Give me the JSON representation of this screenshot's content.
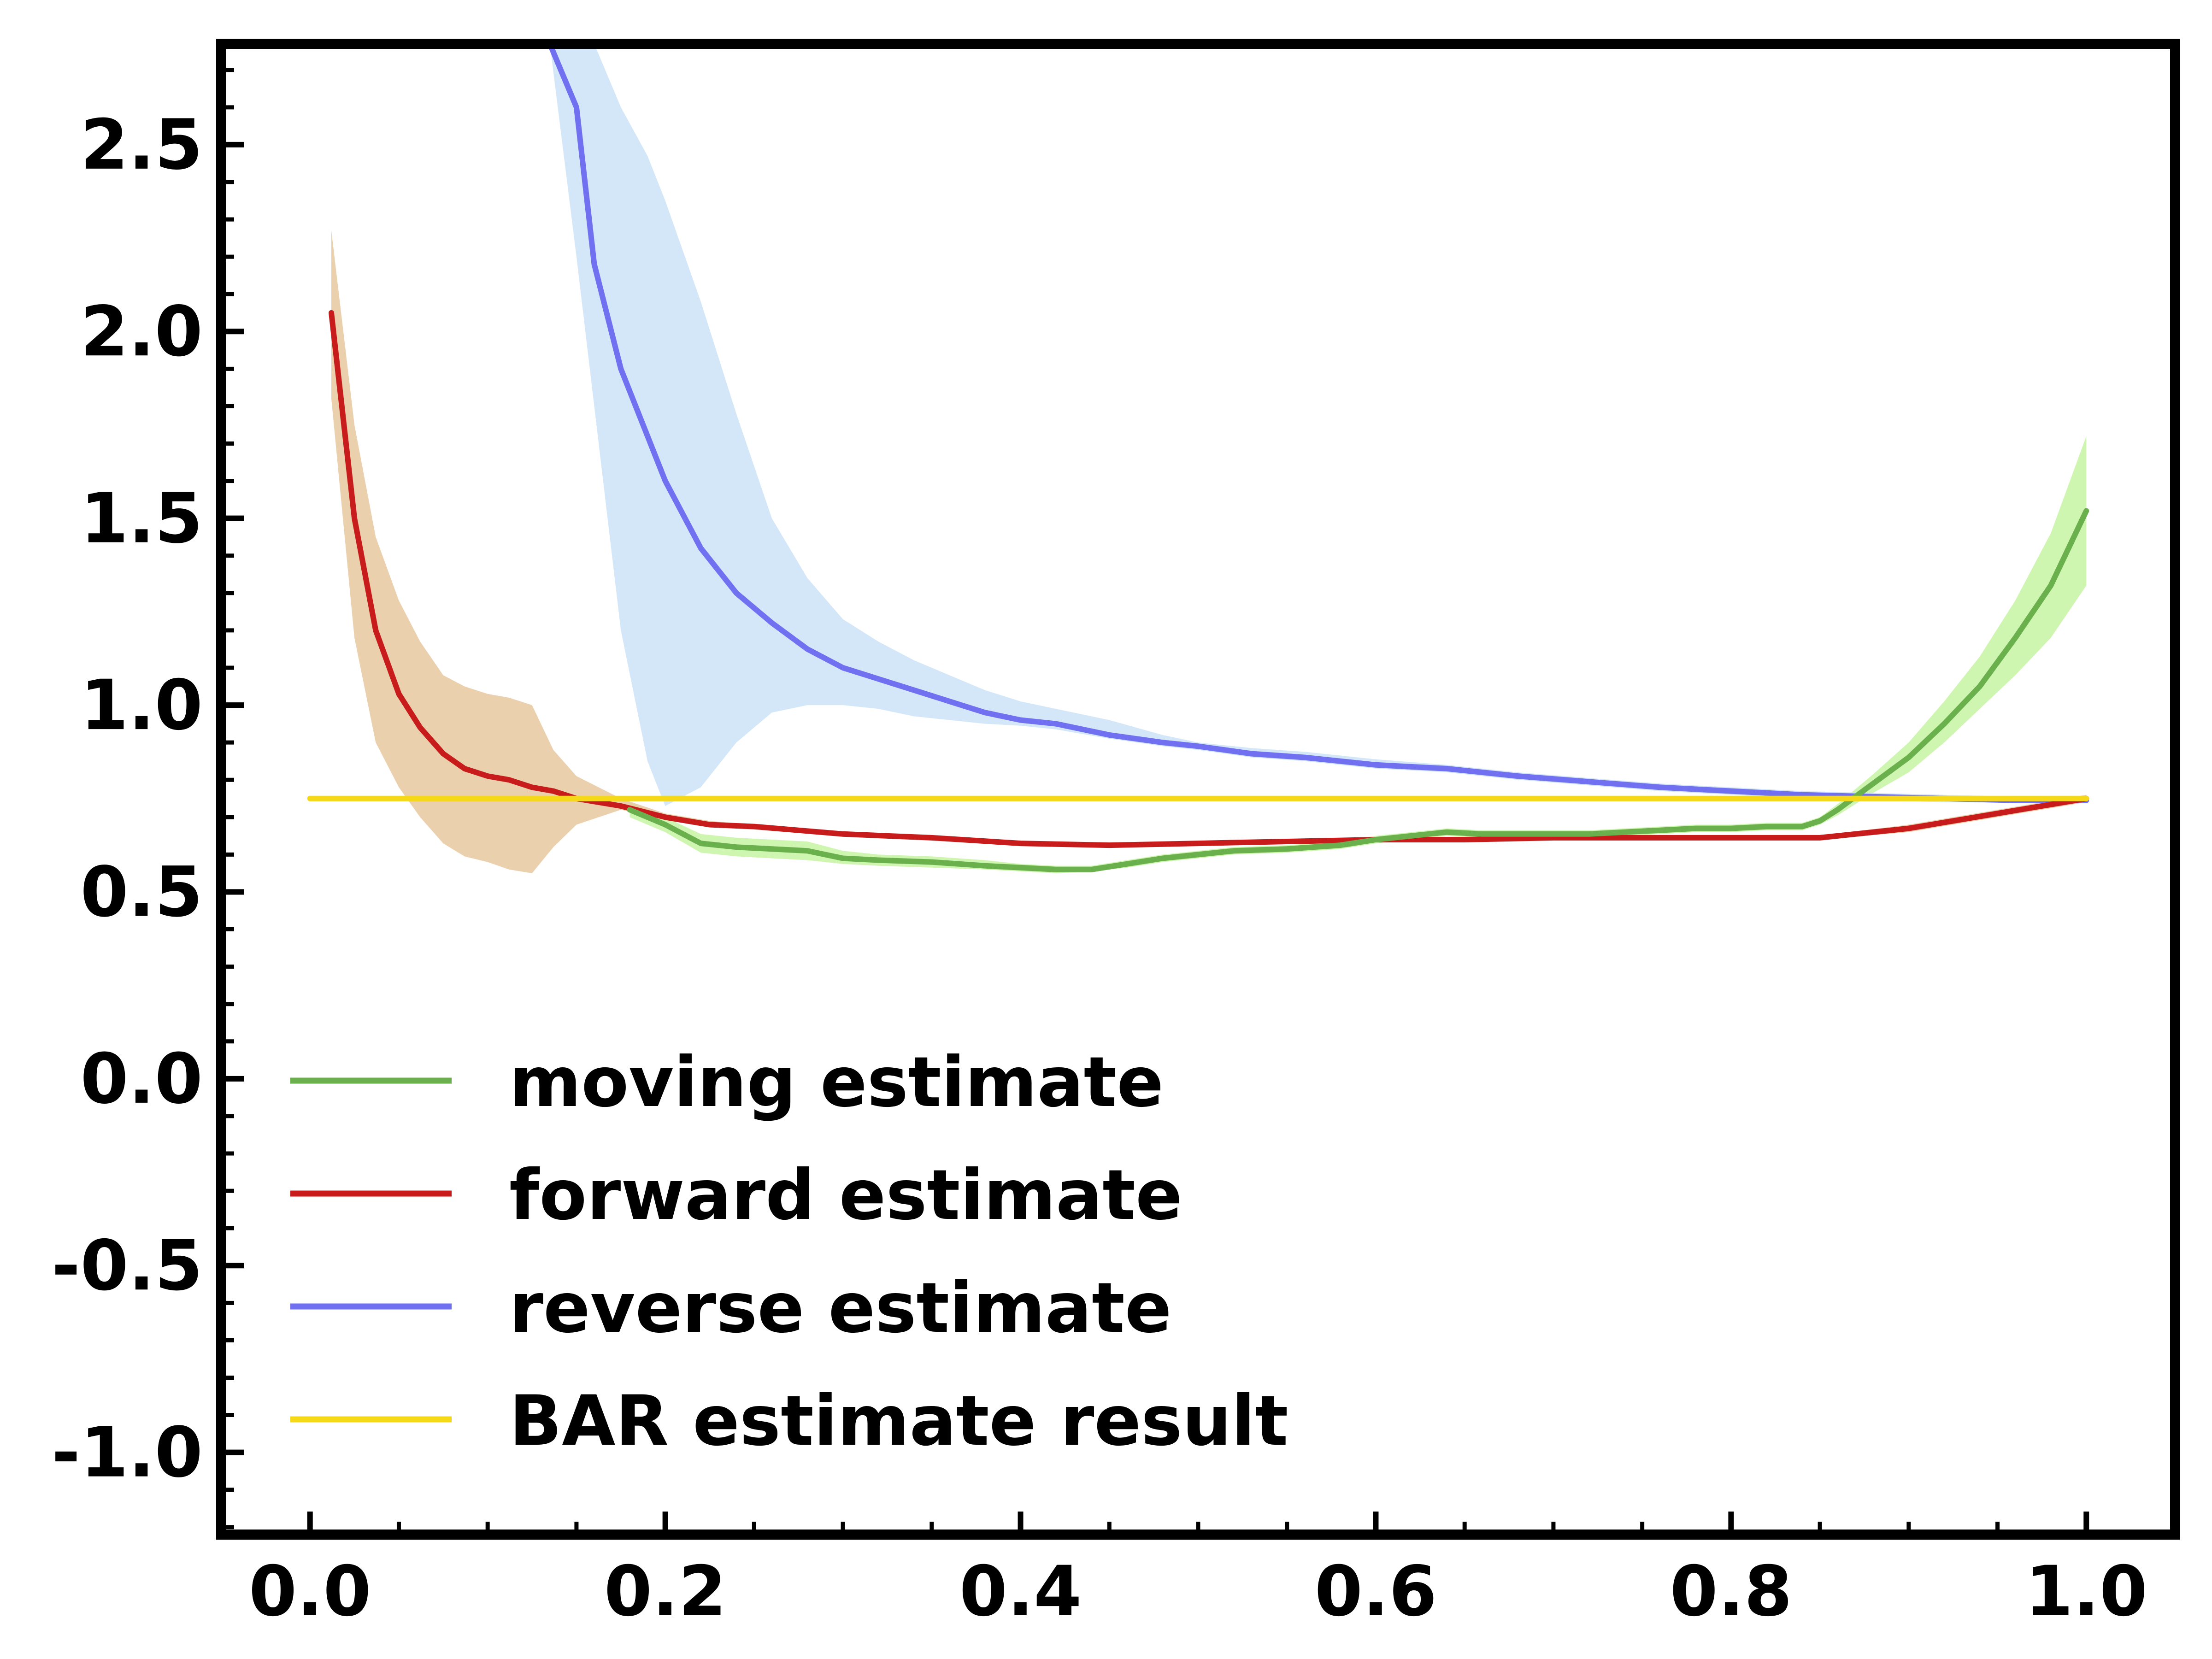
{
  "chart_data": {
    "type": "line",
    "xlim": [
      -0.05,
      1.05
    ],
    "ylim": [
      -1.22,
      2.77
    ],
    "x_ticks": [
      "0.0",
      "0.2",
      "0.4",
      "0.6",
      "0.8",
      "1.0"
    ],
    "y_ticks": [
      "-1.0",
      "-0.5",
      "0.0",
      "0.5",
      "1.0",
      "1.5",
      "2.0",
      "2.5"
    ],
    "grid": false,
    "legend_position": "lower-left",
    "series": [
      {
        "name": "moving estimate",
        "color": "#6ab04c",
        "band_color": "#c7f5a2",
        "x": [
          0.18,
          0.2,
          0.22,
          0.24,
          0.26,
          0.28,
          0.3,
          0.32,
          0.35,
          0.38,
          0.4,
          0.42,
          0.44,
          0.46,
          0.48,
          0.5,
          0.52,
          0.55,
          0.58,
          0.6,
          0.62,
          0.64,
          0.66,
          0.68,
          0.7,
          0.72,
          0.74,
          0.76,
          0.78,
          0.8,
          0.82,
          0.84,
          0.85,
          0.86,
          0.88,
          0.9,
          0.92,
          0.94,
          0.96,
          0.98,
          1.0
        ],
        "y": [
          0.72,
          0.68,
          0.63,
          0.62,
          0.615,
          0.61,
          0.59,
          0.585,
          0.58,
          0.57,
          0.565,
          0.56,
          0.56,
          0.575,
          0.59,
          0.6,
          0.61,
          0.615,
          0.625,
          0.64,
          0.65,
          0.66,
          0.655,
          0.655,
          0.655,
          0.655,
          0.66,
          0.665,
          0.67,
          0.67,
          0.675,
          0.675,
          0.69,
          0.72,
          0.79,
          0.86,
          0.95,
          1.05,
          1.18,
          1.32,
          1.52
        ],
        "lower": [
          0.7,
          0.66,
          0.605,
          0.595,
          0.59,
          0.585,
          0.575,
          0.57,
          0.565,
          0.56,
          0.555,
          0.55,
          0.555,
          0.565,
          0.58,
          0.59,
          0.6,
          0.605,
          0.615,
          0.63,
          0.64,
          0.65,
          0.645,
          0.645,
          0.645,
          0.645,
          0.65,
          0.655,
          0.66,
          0.66,
          0.665,
          0.665,
          0.68,
          0.705,
          0.765,
          0.82,
          0.9,
          0.99,
          1.08,
          1.18,
          1.32
        ],
        "upper": [
          0.74,
          0.7,
          0.655,
          0.645,
          0.64,
          0.635,
          0.61,
          0.6,
          0.595,
          0.585,
          0.575,
          0.57,
          0.57,
          0.585,
          0.6,
          0.61,
          0.62,
          0.625,
          0.635,
          0.65,
          0.66,
          0.67,
          0.665,
          0.665,
          0.665,
          0.665,
          0.67,
          0.675,
          0.68,
          0.68,
          0.685,
          0.685,
          0.7,
          0.735,
          0.815,
          0.9,
          1.01,
          1.13,
          1.28,
          1.46,
          1.72
        ]
      },
      {
        "name": "forward estimate",
        "color": "#c81c1c",
        "band_color": "#e8c8a0",
        "x": [
          0.012,
          0.025,
          0.037,
          0.05,
          0.062,
          0.075,
          0.087,
          0.1,
          0.112,
          0.125,
          0.137,
          0.15,
          0.175,
          0.2,
          0.225,
          0.25,
          0.275,
          0.3,
          0.35,
          0.4,
          0.45,
          0.5,
          0.55,
          0.6,
          0.65,
          0.7,
          0.75,
          0.8,
          0.85,
          0.9,
          0.95,
          1.0
        ],
        "y": [
          2.05,
          1.5,
          1.2,
          1.03,
          0.94,
          0.87,
          0.83,
          0.81,
          0.8,
          0.78,
          0.77,
          0.75,
          0.73,
          0.7,
          0.68,
          0.675,
          0.665,
          0.655,
          0.645,
          0.63,
          0.625,
          0.63,
          0.635,
          0.64,
          0.64,
          0.645,
          0.645,
          0.645,
          0.645,
          0.67,
          0.71,
          0.75
        ],
        "lower": [
          1.82,
          1.18,
          0.9,
          0.78,
          0.7,
          0.63,
          0.595,
          0.58,
          0.56,
          0.55,
          0.62,
          0.68,
          0.72,
          0.695,
          0.675,
          0.67,
          0.66,
          0.65,
          0.64,
          0.625,
          0.62,
          0.625,
          0.63,
          0.635,
          0.635,
          0.64,
          0.64,
          0.64,
          0.64,
          0.66,
          0.7,
          0.74
        ],
        "upper": [
          2.27,
          1.75,
          1.45,
          1.28,
          1.17,
          1.08,
          1.05,
          1.03,
          1.02,
          1.0,
          0.88,
          0.81,
          0.75,
          0.71,
          0.69,
          0.68,
          0.67,
          0.66,
          0.65,
          0.635,
          0.63,
          0.635,
          0.64,
          0.645,
          0.645,
          0.65,
          0.65,
          0.65,
          0.65,
          0.68,
          0.72,
          0.76
        ]
      },
      {
        "name": "reverse estimate",
        "color": "#7070f0",
        "band_color": "#cce3f8",
        "x": [
          0.135,
          0.15,
          0.16,
          0.175,
          0.19,
          0.2,
          0.22,
          0.24,
          0.26,
          0.28,
          0.3,
          0.32,
          0.34,
          0.36,
          0.38,
          0.4,
          0.42,
          0.45,
          0.48,
          0.5,
          0.53,
          0.56,
          0.6,
          0.64,
          0.68,
          0.72,
          0.76,
          0.8,
          0.84,
          0.88,
          0.92,
          0.96,
          1.0
        ],
        "y": [
          2.77,
          2.6,
          2.18,
          1.9,
          1.72,
          1.6,
          1.42,
          1.3,
          1.22,
          1.15,
          1.1,
          1.07,
          1.04,
          1.01,
          0.98,
          0.96,
          0.95,
          0.92,
          0.9,
          0.89,
          0.87,
          0.86,
          0.84,
          0.83,
          0.81,
          0.795,
          0.78,
          0.77,
          0.76,
          0.755,
          0.75,
          0.745,
          0.745
        ],
        "lower": [
          2.77,
          2.2,
          1.8,
          1.2,
          0.85,
          0.73,
          0.78,
          0.9,
          0.98,
          1.0,
          1.0,
          0.99,
          0.97,
          0.96,
          0.95,
          0.945,
          0.935,
          0.91,
          0.89,
          0.88,
          0.86,
          0.85,
          0.83,
          0.82,
          0.8,
          0.785,
          0.77,
          0.76,
          0.75,
          0.745,
          0.74,
          0.74,
          0.74
        ],
        "upper": [
          2.77,
          2.77,
          2.77,
          2.6,
          2.47,
          2.35,
          2.08,
          1.78,
          1.5,
          1.34,
          1.23,
          1.17,
          1.12,
          1.08,
          1.04,
          1.01,
          0.99,
          0.96,
          0.92,
          0.9,
          0.885,
          0.875,
          0.855,
          0.84,
          0.82,
          0.805,
          0.79,
          0.78,
          0.77,
          0.765,
          0.76,
          0.755,
          0.75
        ]
      },
      {
        "name": "BAR estimate result",
        "color": "#f5d816",
        "x": [
          0.0,
          1.0
        ],
        "y": [
          0.75,
          0.75
        ]
      }
    ]
  }
}
